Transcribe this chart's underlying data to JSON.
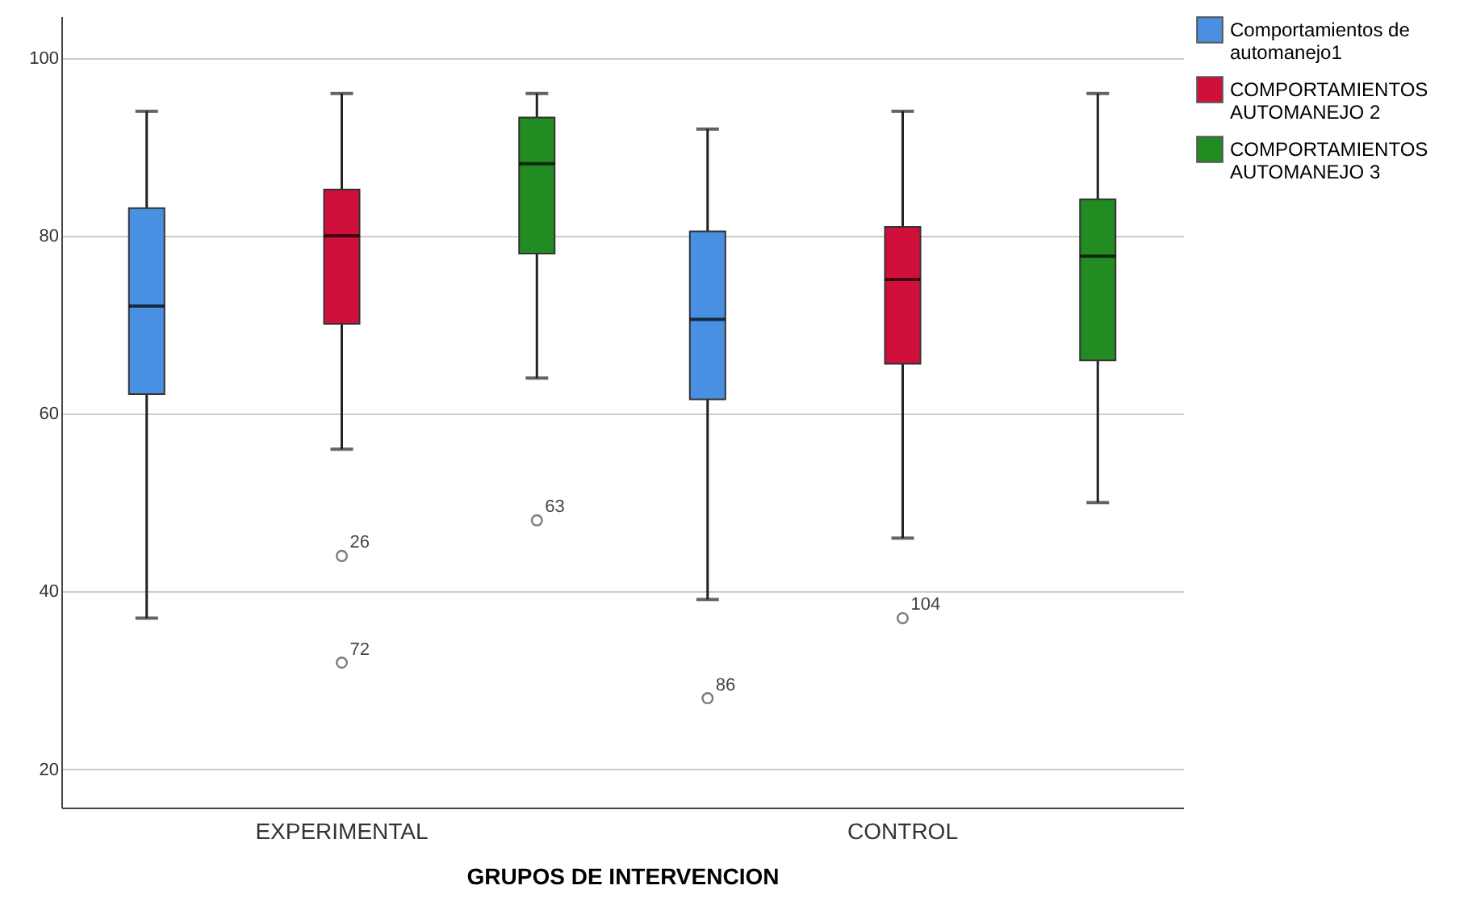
{
  "chart_data": {
    "type": "box",
    "xlabel": "GRUPOS DE INTERVENCION",
    "categories": [
      "EXPERIMENTAL",
      "CONTROL"
    ],
    "series": [
      {
        "name": "Comportamientos de automanejo1",
        "color": "#4a90e2",
        "boxes": [
          {
            "low": 37,
            "q1": 62.2,
            "median": 72.1,
            "q3": 83.1,
            "high": 94
          },
          {
            "low": 39.1,
            "q1": 61.6,
            "median": 70.6,
            "q3": 80.5,
            "high": 92,
            "outliers": [
              28
            ]
          }
        ]
      },
      {
        "name": "COMPORTAMIENTOS AUTOMANEJO 2",
        "color": "#d0103a",
        "boxes": [
          {
            "low": 56,
            "q1": 70.1,
            "median": 80,
            "q3": 85.2,
            "high": 96,
            "outliers": [
              44,
              32
            ]
          },
          {
            "low": 46,
            "q1": 65.6,
            "median": 75.1,
            "q3": 81,
            "high": 94,
            "outliers": [
              37
            ]
          }
        ]
      },
      {
        "name": "COMPORTAMIENTOS AUTOMANEJO 3",
        "color": "#228b22",
        "boxes": [
          {
            "low": 64,
            "q1": 78,
            "median": 88.1,
            "q3": 93.3,
            "high": 96,
            "outliers": [
              48
            ]
          },
          {
            "low": 50,
            "q1": 66,
            "median": 77.7,
            "q3": 84.1,
            "high": 96
          }
        ]
      }
    ],
    "annotations": [
      "86",
      "26",
      "72",
      "104",
      "63"
    ],
    "ylim": [
      15.7,
      104.7
    ],
    "yticks": [
      20,
      40,
      60,
      80,
      100
    ],
    "grid": "y",
    "legend": "top right"
  }
}
